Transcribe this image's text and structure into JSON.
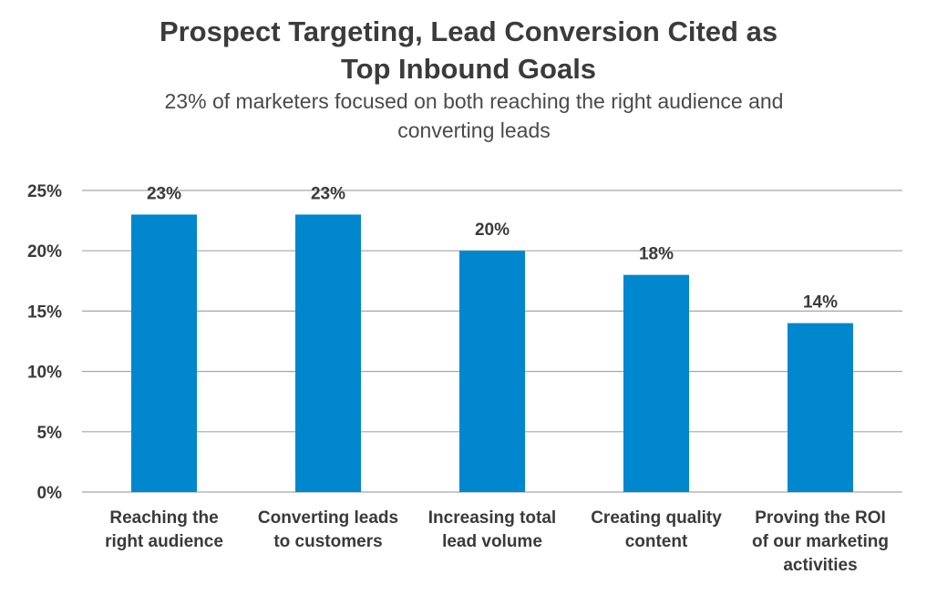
{
  "chart_data": {
    "type": "bar",
    "title": [
      "Prospect Targeting, Lead Conversion Cited as",
      "Top Inbound Goals"
    ],
    "subtitle": [
      "23% of marketers focused on both reaching the right audience and",
      "converting leads"
    ],
    "categories": [
      [
        "Reaching the",
        "right audience"
      ],
      [
        "Converting leads",
        "to customers"
      ],
      [
        "Increasing total",
        "lead volume"
      ],
      [
        "Creating quality",
        "content"
      ],
      [
        "Proving the ROI",
        "of our marketing",
        "activities"
      ]
    ],
    "values": [
      23,
      23,
      20,
      18,
      14
    ],
    "data_labels": [
      "23%",
      "23%",
      "20%",
      "18%",
      "14%"
    ],
    "ylim": [
      0,
      25
    ],
    "yticks": [
      0,
      5,
      10,
      15,
      20,
      25
    ],
    "ytick_labels": [
      "0%",
      "5%",
      "10%",
      "15%",
      "20%",
      "25%"
    ],
    "grid": true,
    "bar_color": "#0087cd",
    "grid_color": "#a6a6a6"
  }
}
